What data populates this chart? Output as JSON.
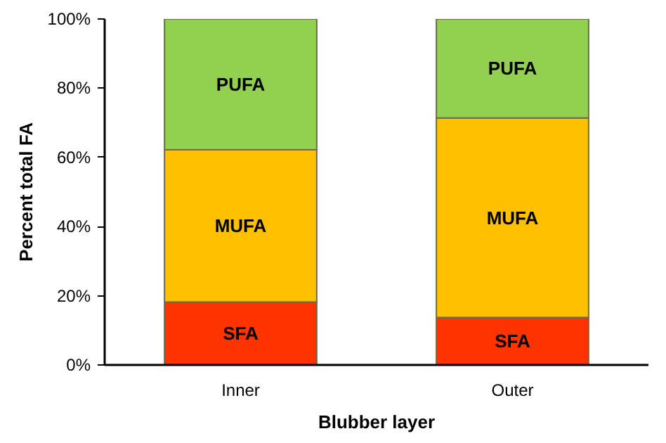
{
  "chart_data": {
    "type": "bar",
    "stacked": true,
    "xlabel": "Blubber layer",
    "ylabel": "Percent total FA",
    "categories": [
      "Inner",
      "Outer"
    ],
    "series": [
      {
        "name": "SFA",
        "color": "#ff3300",
        "values": [
          18.2,
          13.7
        ]
      },
      {
        "name": "MUFA",
        "color": "#ffc000",
        "values": [
          44.0,
          57.7
        ]
      },
      {
        "name": "PUFA",
        "color": "#92d050",
        "values": [
          37.8,
          28.6
        ]
      }
    ],
    "ylim": [
      0,
      100
    ],
    "yticks": [
      {
        "value": 0,
        "label": "0%"
      },
      {
        "value": 20,
        "label": "20%"
      },
      {
        "value": 40,
        "label": "40%"
      },
      {
        "value": 60,
        "label": "60%"
      },
      {
        "value": 80,
        "label": "80%"
      },
      {
        "value": 100,
        "label": "100%"
      }
    ],
    "grid": false
  }
}
